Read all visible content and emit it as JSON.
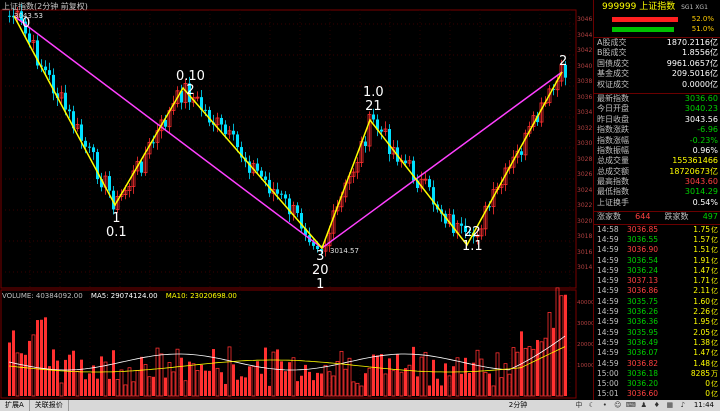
{
  "chart": {
    "title": "上证指数(2分钟 前复权)",
    "high_tag": "3043.53",
    "low_tag": "3014.57",
    "volume_legend": {
      "volume": "VOLUME: 40384092.00",
      "ma5": "MA5: 29074124.00",
      "ma10": "MA10: 23020698.00"
    },
    "wave_labels": [
      {
        "id": "w0",
        "text": "0"
      },
      {
        "id": "w1",
        "text": "1\n0.1"
      },
      {
        "id": "w2",
        "text": "0.10\n2"
      },
      {
        "id": "w3",
        "text": "3\n20\n1"
      },
      {
        "id": "w4",
        "text": "1.0\n21"
      },
      {
        "id": "w5",
        "text": "22\n1.1"
      },
      {
        "id": "w6",
        "text": "2"
      }
    ],
    "price_axis": [
      "3046",
      "3044",
      "3042",
      "3040",
      "3038",
      "3036",
      "3034",
      "3032",
      "3030",
      "3028",
      "3026",
      "3024",
      "3022",
      "3020",
      "3018",
      "3016",
      "3014"
    ],
    "volume_axis": [
      "40000",
      "30000",
      "20000",
      "10000"
    ]
  },
  "panel": {
    "code": "999999",
    "name": "上证指数",
    "tag": "SG1 XG1",
    "ratio_up": "52.0%",
    "ratio_down": "51.0%",
    "stats": [
      {
        "label": "A股成交",
        "value": "1870.2116亿",
        "cls": "white"
      },
      {
        "label": "B股成交",
        "value": "1.8556亿",
        "cls": "white"
      },
      {
        "label": "国债成交",
        "value": "9961.0657亿",
        "cls": "white"
      },
      {
        "label": "基金成交",
        "value": "209.5016亿",
        "cls": "white"
      },
      {
        "label": "权证成交",
        "value": "0.0000亿",
        "cls": "white"
      }
    ],
    "quotes": [
      {
        "label": "最新指数",
        "value": "3036.60",
        "cls": "green"
      },
      {
        "label": "今日开盘",
        "value": "3040.23",
        "cls": "green"
      },
      {
        "label": "昨日收盘",
        "value": "3043.56",
        "cls": "white"
      },
      {
        "label": "指数涨跌",
        "value": "-6.96",
        "cls": "green"
      },
      {
        "label": "指数涨幅",
        "value": "-0.23%",
        "cls": "green"
      },
      {
        "label": "指数振幅",
        "value": "0.96%",
        "cls": "white"
      },
      {
        "label": "总成交量",
        "value": "155361466",
        "cls": "yellow"
      },
      {
        "label": "总成交额",
        "value": "18720673亿",
        "cls": "yellow"
      },
      {
        "label": "最高指数",
        "value": "3043.60",
        "cls": "red"
      },
      {
        "label": "最低指数",
        "value": "3014.29",
        "cls": "green"
      },
      {
        "label": "上证换手",
        "value": "0.54%",
        "cls": "white"
      }
    ],
    "breadth": {
      "up_label": "涨家数",
      "up_value": "644",
      "down_label": "跌家数",
      "down_value": "497"
    },
    "ticks": [
      {
        "t": "14:58",
        "p": "3036.85",
        "v": "1.75",
        "d": "亿"
      },
      {
        "t": "14:59",
        "p": "3036.55",
        "v": "1.57",
        "d": "亿"
      },
      {
        "t": "14:59",
        "p": "3036.90",
        "v": "1.51",
        "d": "亿"
      },
      {
        "t": "14:59",
        "p": "3036.54",
        "v": "1.91",
        "d": "亿"
      },
      {
        "t": "14:59",
        "p": "3036.24",
        "v": "1.47",
        "d": "亿"
      },
      {
        "t": "14:59",
        "p": "3037.13",
        "v": "1.71",
        "d": "亿"
      },
      {
        "t": "14:59",
        "p": "3036.86",
        "v": "2.11",
        "d": "亿"
      },
      {
        "t": "14:59",
        "p": "3035.75",
        "v": "1.60",
        "d": "亿"
      },
      {
        "t": "14:59",
        "p": "3036.26",
        "v": "2.26",
        "d": "亿"
      },
      {
        "t": "14:59",
        "p": "3036.36",
        "v": "1.95",
        "d": "亿"
      },
      {
        "t": "14:59",
        "p": "3035.95",
        "v": "2.05",
        "d": "亿"
      },
      {
        "t": "14:59",
        "p": "3036.49",
        "v": "1.38",
        "d": "亿"
      },
      {
        "t": "14:59",
        "p": "3036.07",
        "v": "1.47",
        "d": "亿"
      },
      {
        "t": "14:59",
        "p": "3036.82",
        "v": "1.48",
        "d": "亿"
      },
      {
        "t": "15:00",
        "p": "3036.18",
        "v": "8285",
        "d": "万"
      },
      {
        "t": "15:00",
        "p": "3036.20",
        "v": "0",
        "d": "亿"
      },
      {
        "t": "15:01",
        "p": "3036.60",
        "v": "0",
        "d": "亿"
      }
    ]
  },
  "status": {
    "tabs": [
      "扩展A",
      "关联报价"
    ],
    "period": "2分钟",
    "time": "11:44"
  },
  "colors": {
    "up": "#ff3030",
    "down": "#00e0ff",
    "wave_yellow": "#ffff00",
    "wave_magenta": "#ff40ff",
    "ma_white": "#ffffff",
    "ma_yellow": "#ffff00"
  }
}
